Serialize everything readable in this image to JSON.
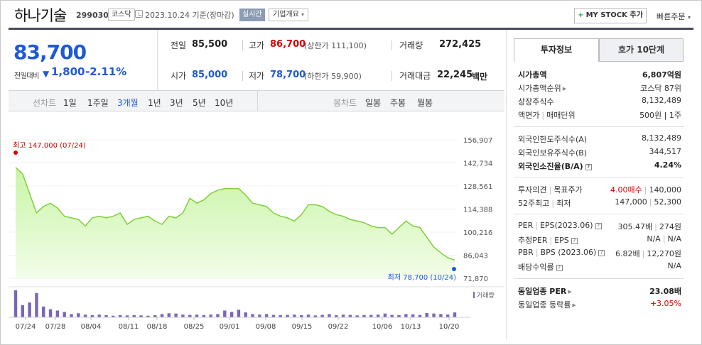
{
  "header": {
    "stock_name": "하나기술",
    "stock_code": "299030",
    "market": "코스닥",
    "as_of": "2023.10.24 기준(장마감)",
    "realtime": "실시간",
    "company_overview": "기업개요",
    "my_stock": "MY STOCK 추가",
    "quick_order": "빠른주문"
  },
  "price": {
    "current": "83,700",
    "prev_label": "전일대비",
    "change": "1,800",
    "change_pct": "-2.11%"
  },
  "info": {
    "prev_close_label": "전일",
    "prev_close": "85,500",
    "high_label": "고가",
    "high": "86,700",
    "upper_limit": "(상한가 111,100)",
    "volume_label": "거래량",
    "volume": "272,425",
    "open_label": "시가",
    "open": "85,000",
    "low_label": "저가",
    "low": "78,700",
    "lower_limit": "(하한가 59,900)",
    "amount_label": "거래대금",
    "amount": "22,245",
    "amount_unit": "백만"
  },
  "period_bar": {
    "line_label": "선차트",
    "line_options": [
      "1일",
      "1주일",
      "3개월",
      "1년",
      "3년",
      "5년",
      "10년"
    ],
    "active_index": 2,
    "candle_label": "봉차트",
    "candle_options": [
      "일봉",
      "주봉",
      "월봉"
    ]
  },
  "chart_data": {
    "type": "area",
    "y_ticks": [
      "156,907",
      "142,734",
      "128,561",
      "114,388",
      "100,216",
      "86,043",
      "71,870"
    ],
    "ylim": [
      71870,
      156907
    ],
    "x_ticks": [
      "07/24",
      "07/28",
      "08/04",
      "08/11",
      "08/18",
      "08/25",
      "09/01",
      "09/08",
      "09/15",
      "09/22",
      "10/06",
      "10/13",
      "10/20"
    ],
    "high_annotation": "최고 147,000 (07/24)",
    "low_annotation": "최저 78,700 (10/24)",
    "volume_label": "거래량",
    "series": [
      {
        "values": [
          140000,
          136000,
          124000,
          112000,
          116000,
          118000,
          115000,
          110000,
          109000,
          108000,
          104000,
          109000,
          110000,
          109000,
          110000,
          112000,
          105000,
          108000,
          109000,
          110000,
          107000,
          105000,
          110000,
          109000,
          112000,
          121000,
          118000,
          120000,
          124000,
          126000,
          127000,
          127000,
          127000,
          123000,
          118000,
          117000,
          116000,
          112000,
          110000,
          109000,
          107000,
          111000,
          117000,
          117000,
          116000,
          113000,
          111000,
          110000,
          108000,
          107000,
          106000,
          104000,
          103000,
          103000,
          99000,
          103000,
          107000,
          104000,
          103000,
          97000,
          91000,
          87500,
          84500,
          83000
        ]
      },
      {
        "name": "거래량",
        "values": [
          100,
          45,
          55,
          90,
          40,
          30,
          25,
          20,
          12,
          15,
          10,
          8,
          10,
          8,
          6,
          8,
          7,
          8,
          7,
          6,
          8,
          12,
          15,
          14,
          10,
          9,
          10,
          8,
          10,
          12,
          25,
          20,
          28,
          18,
          12,
          10,
          12,
          9,
          8,
          9,
          10,
          8,
          10,
          7,
          9,
          12,
          8,
          10,
          9,
          7,
          8,
          9,
          10,
          14,
          9,
          8,
          12,
          11,
          9,
          16,
          14,
          12,
          10,
          18
        ]
      }
    ]
  },
  "tabs": {
    "invest": "투자정보",
    "ask": "호가 10단계"
  },
  "panel": {
    "market_cap_label": "시가총액",
    "market_cap": "6,807억원",
    "cap_rank_label": "시가총액순위",
    "cap_rank": "코스닥 87위",
    "shares_label": "상장주식수",
    "shares": "8,132,489",
    "par_label": "액면가",
    "unit_label": "매매단위",
    "par_unit": "500원  |  1주",
    "foreign_limit_label": "외국인한도주식수(A)",
    "foreign_limit": "8,132,489",
    "foreign_hold_label": "외국인보유주식수(B)",
    "foreign_hold": "344,517",
    "foreign_ratio_label": "외국인소진율(B/A)",
    "foreign_ratio": "4.24%",
    "opinion_label": "투자의견",
    "target_label": "목표주가",
    "opinion_val": "4.00매수",
    "target_val": "140,000",
    "w52_label": "52주최고",
    "w52_low_label": "최저",
    "w52_high": "147,000",
    "w52_low": "52,300",
    "per_label": "PER",
    "eps_label": "EPS(2023.06)",
    "per_val": "305.47배",
    "eps_val": "274원",
    "est_per_label": "추정PER",
    "est_eps_label": "EPS",
    "est_per_val": "N/A",
    "est_eps_val": "N/A",
    "pbr_label": "PBR",
    "bps_label": "BPS (2023.06)",
    "pbr_val": "6.82배",
    "bps_val": "12,270원",
    "div_label": "배당수익률",
    "div_val": "N/A",
    "sector_per_label": "동일업종 PER",
    "sector_per": "23.08배",
    "sector_chg_label": "동일업종 등락률",
    "sector_chg": "+3.05%"
  }
}
